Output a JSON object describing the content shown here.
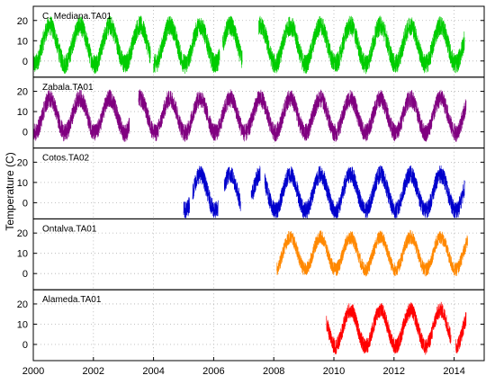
{
  "chart_data": {
    "type": "line",
    "ylabel": "Temperature (C)",
    "xlim": [
      2000,
      2015
    ],
    "x_ticks": [
      2000,
      2002,
      2004,
      2006,
      2008,
      2010,
      2012,
      2014
    ],
    "y_ticks": [
      0,
      10,
      20
    ],
    "ylim": [
      -8,
      27
    ],
    "grid": true,
    "panels": [
      {
        "name": "C. Mediana.TA01",
        "color": "#00cc00",
        "segments": [
          [
            2000.0,
            2003.9
          ],
          [
            2004.0,
            2006.2
          ],
          [
            2006.3,
            2006.95
          ],
          [
            2007.5,
            2014.35
          ]
        ],
        "mean": 8,
        "amplitude": 9.5,
        "noise": 5
      },
      {
        "name": "Zabala.TA01",
        "color": "#800080",
        "segments": [
          [
            2000.0,
            2003.2
          ],
          [
            2003.5,
            2014.4
          ]
        ],
        "mean": 8,
        "amplitude": 8.5,
        "noise": 4.5
      },
      {
        "name": "Cotos.TA02",
        "color": "#0000cc",
        "segments": [
          [
            2005.0,
            2005.2
          ],
          [
            2005.3,
            2006.15
          ],
          [
            2006.35,
            2006.9
          ],
          [
            2007.25,
            2007.55
          ],
          [
            2007.7,
            2014.35
          ]
        ],
        "mean": 5,
        "amplitude": 9,
        "noise": 4.5
      },
      {
        "name": "Ontalva.TA01",
        "color": "#ff8800",
        "segments": [
          [
            2008.1,
            2014.45
          ]
        ],
        "mean": 10,
        "amplitude": 8,
        "noise": 3.5
      },
      {
        "name": "Alameda.TA01",
        "color": "#ff0000",
        "segments": [
          [
            2009.75,
            2013.9
          ],
          [
            2014.05,
            2014.4
          ]
        ],
        "mean": 8,
        "amplitude": 9,
        "noise": 4
      }
    ]
  }
}
